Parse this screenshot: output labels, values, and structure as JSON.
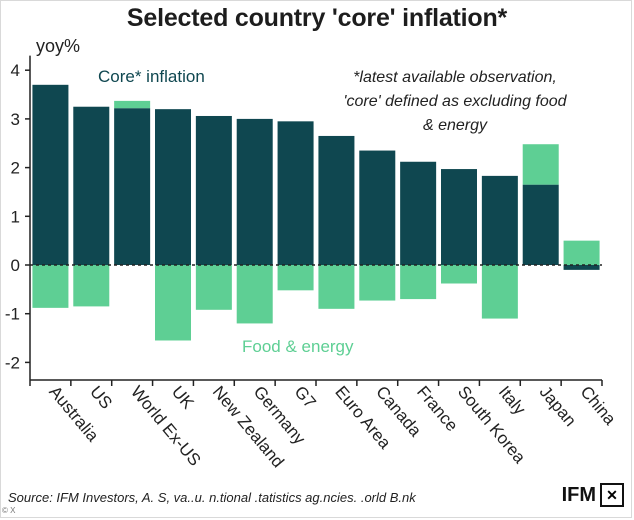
{
  "title": "Selected country 'core' inflation*",
  "source_text": "Source: IFM Investors, A. S, va..u. n.tional .tatistics ag.ncies. .orld B.nk",
  "logo_text": "IFM",
  "corner_badge": "© X",
  "colors": {
    "core": "#0f4750",
    "food_energy": "#5ecf94",
    "axis": "#222222",
    "text": "#222222"
  },
  "chart_data": {
    "type": "bar",
    "stacked": true,
    "title": "Selected country 'core' inflation*",
    "ylabel": "yoy%",
    "xlabel": "",
    "ylim": [
      -2.3,
      4.3
    ],
    "yticks": [
      -2,
      -1,
      0,
      1,
      2,
      3,
      4
    ],
    "categories": [
      "Australia",
      "US",
      "World Ex-US",
      "UK",
      "New Zealand",
      "Germany",
      "G7",
      "Euro Area",
      "Canada",
      "France",
      "South Korea",
      "Italy",
      "Japan",
      "China"
    ],
    "series": [
      {
        "name": "Core* inflation",
        "values": [
          3.7,
          3.25,
          3.22,
          3.2,
          3.06,
          3.0,
          2.95,
          2.65,
          2.35,
          2.12,
          1.97,
          1.83,
          1.65,
          -0.1
        ]
      },
      {
        "name": "Food & energy",
        "values": [
          -0.88,
          -0.85,
          0.15,
          -1.55,
          -0.92,
          -1.2,
          -0.52,
          -0.9,
          -0.73,
          -0.7,
          -0.38,
          -1.1,
          0.83,
          0.5
        ]
      }
    ],
    "annotations": [
      {
        "text": "Core* inflation",
        "series": "core"
      },
      {
        "text": "Food & energy",
        "series": "food_energy"
      },
      {
        "lines": [
          "*latest available observation,",
          "'core' defined as excluding food",
          "& energy"
        ]
      }
    ]
  }
}
